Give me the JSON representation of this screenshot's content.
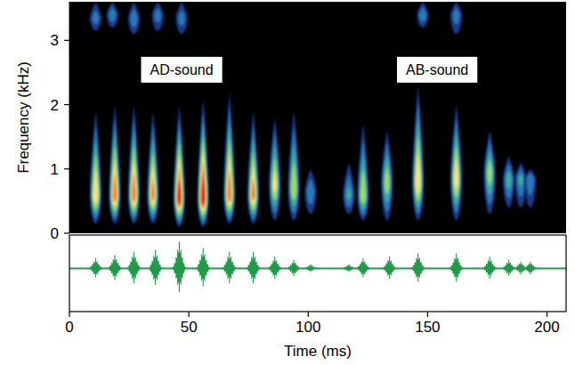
{
  "chart_data": [
    {
      "type": "spectrogram",
      "ylabel": "Frequency (kHz)",
      "xlim": [
        0,
        208
      ],
      "ylim": [
        0,
        3.6
      ],
      "yticks": [
        0,
        1,
        2,
        3
      ],
      "tick_labels": "y",
      "annotations": [
        {
          "text": "AD-sound",
          "x": 47,
          "y": 2.55
        },
        {
          "text": "AB-sound",
          "x": 154,
          "y": 2.55
        }
      ],
      "pulses": [
        {
          "time": 11,
          "f_low": 0.15,
          "f_high": 1.9,
          "peak_freq": 0.6,
          "intensity": 0.75
        },
        {
          "time": 19,
          "f_low": 0.15,
          "f_high": 2.0,
          "peak_freq": 0.6,
          "intensity": 0.85
        },
        {
          "time": 27,
          "f_low": 0.15,
          "f_high": 2.0,
          "peak_freq": 0.6,
          "intensity": 0.85
        },
        {
          "time": 35,
          "f_low": 0.15,
          "f_high": 1.9,
          "peak_freq": 0.6,
          "intensity": 0.8
        },
        {
          "time": 46,
          "f_low": 0.1,
          "f_high": 2.0,
          "peak_freq": 0.55,
          "intensity": 0.95
        },
        {
          "time": 56,
          "f_low": 0.1,
          "f_high": 2.1,
          "peak_freq": 0.55,
          "intensity": 1.0
        },
        {
          "time": 67,
          "f_low": 0.15,
          "f_high": 2.2,
          "peak_freq": 0.6,
          "intensity": 0.85
        },
        {
          "time": 77,
          "f_low": 0.15,
          "f_high": 1.9,
          "peak_freq": 0.6,
          "intensity": 0.8
        },
        {
          "time": 86,
          "f_low": 0.2,
          "f_high": 1.8,
          "peak_freq": 0.75,
          "intensity": 0.65
        },
        {
          "time": 94,
          "f_low": 0.2,
          "f_high": 1.9,
          "peak_freq": 0.7,
          "intensity": 0.6
        },
        {
          "time": 101,
          "f_low": 0.3,
          "f_high": 1.0,
          "peak_freq": 0.65,
          "intensity": 0.3
        },
        {
          "time": 117,
          "f_low": 0.3,
          "f_high": 1.1,
          "peak_freq": 0.6,
          "intensity": 0.35
        },
        {
          "time": 123,
          "f_low": 0.2,
          "f_high": 1.7,
          "peak_freq": 0.6,
          "intensity": 0.6
        },
        {
          "time": 133,
          "f_low": 0.2,
          "f_high": 1.6,
          "peak_freq": 0.8,
          "intensity": 0.55
        },
        {
          "time": 146,
          "f_low": 0.2,
          "f_high": 2.3,
          "peak_freq": 0.8,
          "intensity": 0.75
        },
        {
          "time": 162,
          "f_low": 0.2,
          "f_high": 2.0,
          "peak_freq": 0.85,
          "intensity": 0.7
        },
        {
          "time": 176,
          "f_low": 0.3,
          "f_high": 1.6,
          "peak_freq": 0.95,
          "intensity": 0.55
        },
        {
          "time": 184,
          "f_low": 0.4,
          "f_high": 1.2,
          "peak_freq": 0.85,
          "intensity": 0.4
        },
        {
          "time": 189,
          "f_low": 0.4,
          "f_high": 1.1,
          "peak_freq": 0.85,
          "intensity": 0.35
        },
        {
          "time": 193,
          "f_low": 0.4,
          "f_high": 1.0,
          "peak_freq": 0.85,
          "intensity": 0.3
        },
        {
          "time": 11,
          "f_low": 3.15,
          "f_high": 3.6,
          "peak_freq": 3.35,
          "intensity": 0.25
        },
        {
          "time": 18,
          "f_low": 3.2,
          "f_high": 3.6,
          "peak_freq": 3.4,
          "intensity": 0.3
        },
        {
          "time": 27,
          "f_low": 3.1,
          "f_high": 3.6,
          "peak_freq": 3.35,
          "intensity": 0.3
        },
        {
          "time": 37,
          "f_low": 3.15,
          "f_high": 3.6,
          "peak_freq": 3.4,
          "intensity": 0.25
        },
        {
          "time": 47,
          "f_low": 3.1,
          "f_high": 3.6,
          "peak_freq": 3.35,
          "intensity": 0.25
        },
        {
          "time": 148,
          "f_low": 3.2,
          "f_high": 3.6,
          "peak_freq": 3.4,
          "intensity": 0.3
        },
        {
          "time": 162,
          "f_low": 3.1,
          "f_high": 3.6,
          "peak_freq": 3.4,
          "intensity": 0.25
        }
      ]
    },
    {
      "type": "waveform",
      "xlabel": "Time (ms)",
      "xlim": [
        0,
        208
      ],
      "xticks": [
        0,
        50,
        100,
        150,
        200
      ],
      "ylim": [
        -1.3,
        1
      ],
      "tick_labels": "x",
      "color": "#23994a",
      "bursts": [
        {
          "time": 11,
          "amplitude": 0.3
        },
        {
          "time": 19,
          "amplitude": 0.4
        },
        {
          "time": 27,
          "amplitude": 0.5
        },
        {
          "time": 36,
          "amplitude": 0.55
        },
        {
          "time": 46,
          "amplitude": 0.8
        },
        {
          "time": 56,
          "amplitude": 0.6
        },
        {
          "time": 67,
          "amplitude": 0.5
        },
        {
          "time": 77,
          "amplitude": 0.5
        },
        {
          "time": 86,
          "amplitude": 0.35
        },
        {
          "time": 94,
          "amplitude": 0.25
        },
        {
          "time": 101,
          "amplitude": 0.12
        },
        {
          "time": 117,
          "amplitude": 0.12
        },
        {
          "time": 123,
          "amplitude": 0.3
        },
        {
          "time": 134,
          "amplitude": 0.35
        },
        {
          "time": 146,
          "amplitude": 0.45
        },
        {
          "time": 162,
          "amplitude": 0.45
        },
        {
          "time": 176,
          "amplitude": 0.35
        },
        {
          "time": 184,
          "amplitude": 0.25
        },
        {
          "time": 189,
          "amplitude": 0.2
        },
        {
          "time": 193,
          "amplitude": 0.2
        }
      ]
    }
  ]
}
